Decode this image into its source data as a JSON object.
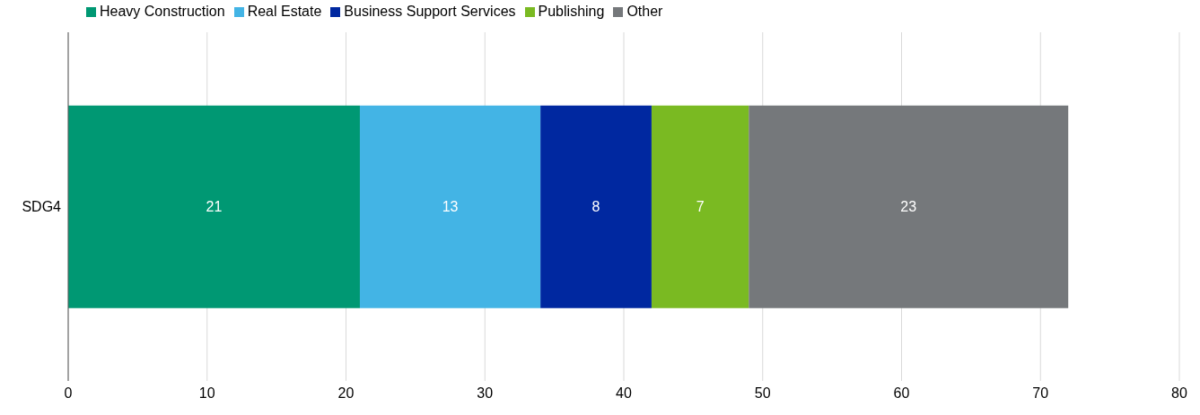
{
  "chart_data": {
    "type": "bar",
    "orientation": "horizontal",
    "stacked": true,
    "categories": [
      "SDG4"
    ],
    "series": [
      {
        "name": "Heavy Construction",
        "color": "#009873",
        "values": [
          21
        ]
      },
      {
        "name": "Real Estate",
        "color": "#43b4e5",
        "values": [
          13
        ]
      },
      {
        "name": "Business Support Services",
        "color": "#0028a0",
        "values": [
          8
        ]
      },
      {
        "name": "Publishing",
        "color": "#7aba22",
        "values": [
          7
        ]
      },
      {
        "name": "Other",
        "color": "#75787b",
        "values": [
          23
        ]
      }
    ],
    "xlim": [
      0,
      80
    ],
    "xticks": [
      0,
      10,
      20,
      30,
      40,
      50,
      60,
      70,
      80
    ],
    "grid": "x",
    "legend": "top left",
    "data_labels": true
  }
}
